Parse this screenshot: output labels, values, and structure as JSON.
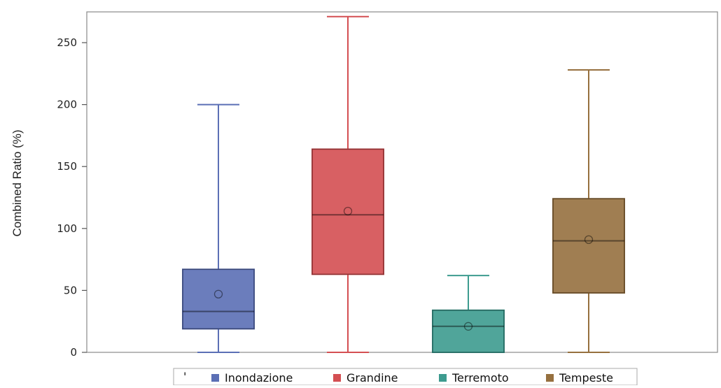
{
  "chart_data": {
    "type": "box",
    "title": "",
    "xlabel": "",
    "ylabel": "Combined Ratio (%)",
    "ylim": [
      0,
      275
    ],
    "yticks": [
      0,
      50,
      100,
      150,
      200,
      250
    ],
    "grid": false,
    "legend": {
      "placement": "bottom",
      "marker": "'",
      "entries": [
        "Inondazione",
        "Grandine",
        "Terremoto",
        "Tempeste"
      ]
    },
    "series": [
      {
        "name": "Inondazione",
        "color": "#5b6fb5",
        "min": 0,
        "q1": 19,
        "median": 33,
        "q3": 67,
        "max": 200,
        "mean": 47
      },
      {
        "name": "Grandine",
        "color": "#d44f52",
        "min": 0,
        "q1": 63,
        "median": 111,
        "q3": 164,
        "max": 271,
        "mean": 114
      },
      {
        "name": "Terremoto",
        "color": "#3d9b8f",
        "min": 0,
        "q1": 0,
        "median": 21,
        "q3": 34,
        "max": 62,
        "mean": 21
      },
      {
        "name": "Tempeste",
        "color": "#96703f",
        "min": 0,
        "q1": 48,
        "median": 90,
        "q3": 124,
        "max": 228,
        "mean": 91
      }
    ]
  }
}
